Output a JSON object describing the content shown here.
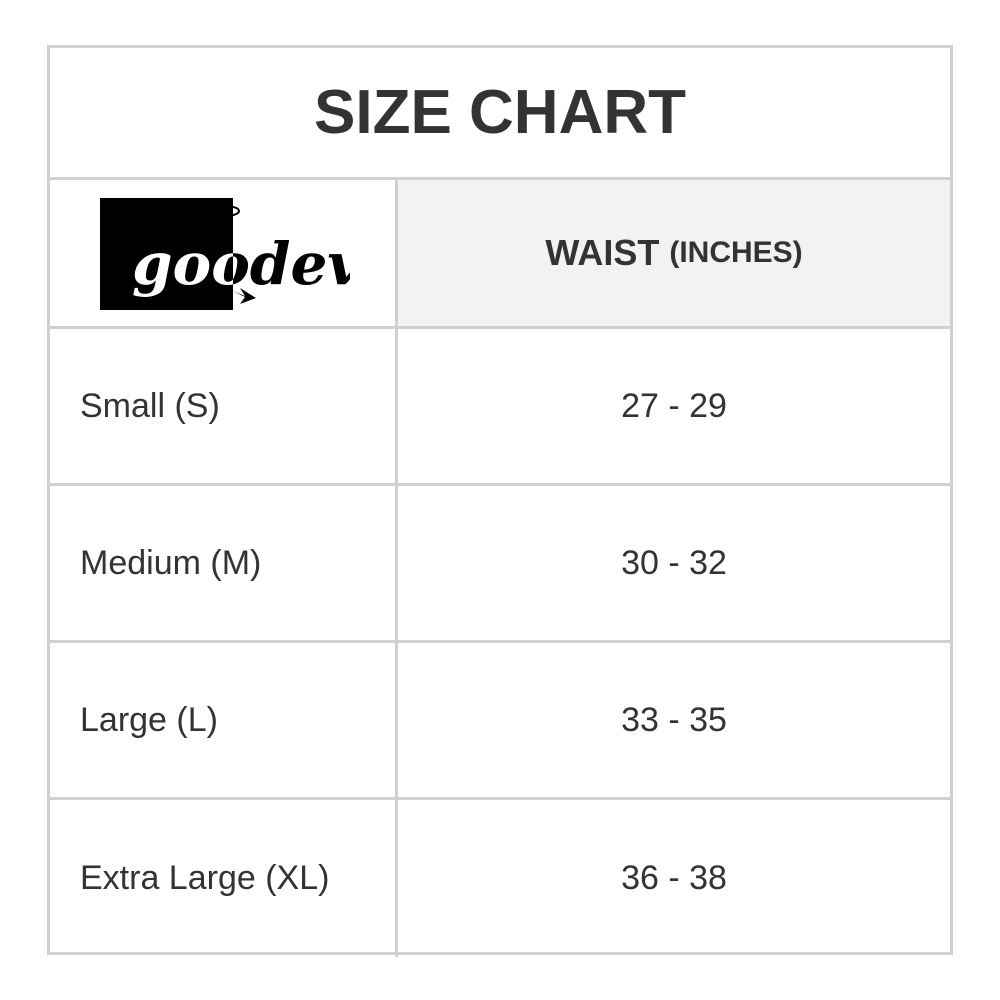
{
  "title": "SIZE CHART",
  "logo": {
    "text": "goodevil"
  },
  "header": {
    "column": "WAIST",
    "unit": "(INCHES)"
  },
  "rows": [
    {
      "size": "Small (S)",
      "waist": "27 - 29"
    },
    {
      "size": "Medium (M)",
      "waist": "30 - 32"
    },
    {
      "size": "Large (L)",
      "waist": "33 - 35"
    },
    {
      "size": "Extra Large (XL)",
      "waist": "36 - 38"
    }
  ],
  "colors": {
    "border": "#d0d0d0",
    "header_bg": "#f2f2f2",
    "text": "#333333"
  }
}
